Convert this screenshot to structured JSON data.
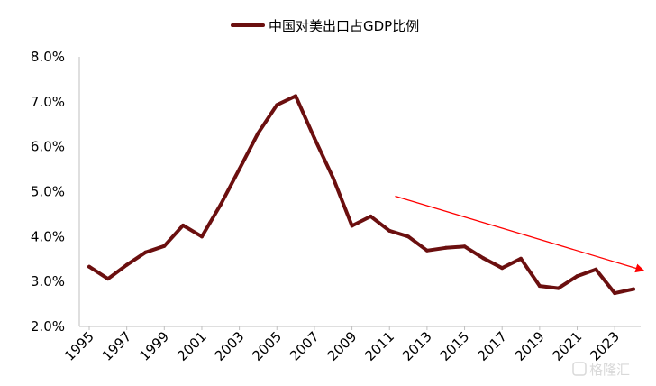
{
  "chart_data": {
    "type": "line",
    "title": "",
    "xlabel": "",
    "ylabel": "",
    "ylim": [
      2.0,
      8.0
    ],
    "y_ticks": [
      "2.0%",
      "3.0%",
      "4.0%",
      "5.0%",
      "6.0%",
      "7.0%",
      "8.0%"
    ],
    "x_tick_labels": [
      "1995",
      "1997",
      "1999",
      "2001",
      "2003",
      "2005",
      "2007",
      "2009",
      "2011",
      "2013",
      "2015",
      "2017",
      "2019",
      "2021",
      "2023"
    ],
    "legend_position": "top-center",
    "grid": false,
    "series": [
      {
        "name": "中国对美出口占GDP比例",
        "color": "#6b0f0f",
        "x": [
          1995,
          1996,
          1997,
          1998,
          1999,
          2000,
          2001,
          2002,
          2003,
          2004,
          2005,
          2006,
          2007,
          2008,
          2009,
          2010,
          2011,
          2012,
          2013,
          2014,
          2015,
          2016,
          2017,
          2018,
          2019,
          2020,
          2021,
          2022,
          2023,
          2024
        ],
        "values": [
          3.33,
          3.06,
          3.37,
          3.65,
          3.79,
          4.25,
          4.0,
          4.71,
          5.5,
          6.3,
          6.93,
          7.13,
          6.19,
          5.3,
          4.24,
          4.45,
          4.13,
          4.0,
          3.69,
          3.75,
          3.78,
          3.52,
          3.3,
          3.51,
          2.9,
          2.85,
          3.12,
          3.27,
          2.74,
          2.83
        ]
      }
    ],
    "annotations": [
      {
        "type": "trend-arrow",
        "color": "#ff0000",
        "from": [
          2011.3,
          4.9
        ],
        "to": [
          2024.5,
          3.25
        ]
      }
    ]
  },
  "watermark": "格隆汇"
}
